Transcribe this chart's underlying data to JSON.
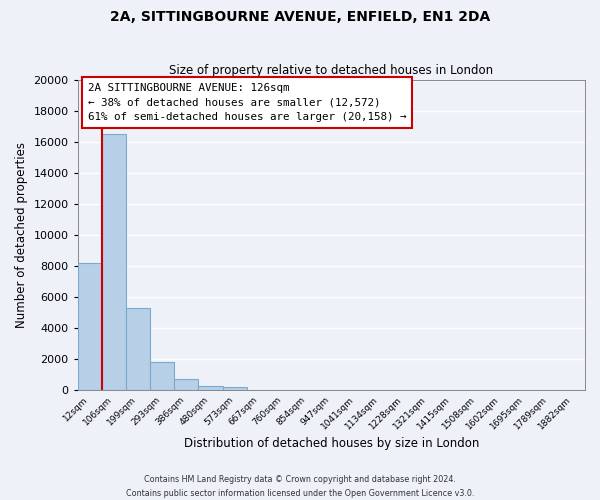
{
  "title": "2A, SITTINGBOURNE AVENUE, ENFIELD, EN1 2DA",
  "subtitle": "Size of property relative to detached houses in London",
  "xlabel": "Distribution of detached houses by size in London",
  "ylabel": "Number of detached properties",
  "bar_labels": [
    "12sqm",
    "106sqm",
    "199sqm",
    "293sqm",
    "386sqm",
    "480sqm",
    "573sqm",
    "667sqm",
    "760sqm",
    "854sqm",
    "947sqm",
    "1041sqm",
    "1134sqm",
    "1228sqm",
    "1321sqm",
    "1415sqm",
    "1508sqm",
    "1602sqm",
    "1695sqm",
    "1789sqm",
    "1882sqm"
  ],
  "bar_values": [
    8200,
    16500,
    5300,
    1800,
    750,
    300,
    200,
    0,
    0,
    0,
    0,
    0,
    0,
    0,
    0,
    0,
    0,
    0,
    0,
    0,
    0
  ],
  "bar_color": "#b8cfe8",
  "bar_edge_color": "#7aaad0",
  "property_line_label": "2A SITTINGBOURNE AVENUE: 126sqm",
  "annotation_line1": "← 38% of detached houses are smaller (12,572)",
  "annotation_line2": "61% of semi-detached houses are larger (20,158) →",
  "box_color": "#ffffff",
  "box_edge_color": "#cc0000",
  "line_color": "#cc0000",
  "ylim": [
    0,
    20000
  ],
  "yticks": [
    0,
    2000,
    4000,
    6000,
    8000,
    10000,
    12000,
    14000,
    16000,
    18000,
    20000
  ],
  "footer1": "Contains HM Land Registry data © Crown copyright and database right 2024.",
  "footer2": "Contains public sector information licensed under the Open Government Licence v3.0.",
  "background_color": "#eef2f8",
  "grid_color": "#ffffff"
}
